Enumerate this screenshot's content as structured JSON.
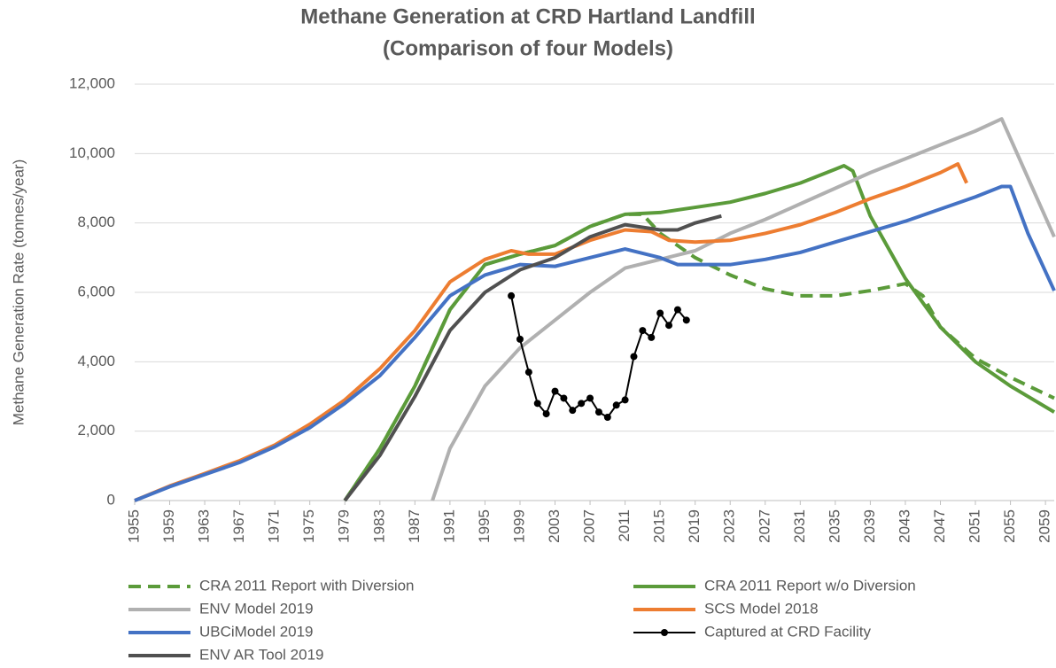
{
  "chart_data": {
    "type": "line",
    "title": "Methane Generation at CRD Hartland Landfill",
    "subtitle": "(Comparison of four Models)",
    "y_label": "Methane Generation Rate (tonnes/year)",
    "xlim": [
      1955,
      2060
    ],
    "xticks": [
      1955,
      1959,
      1963,
      1967,
      1971,
      1975,
      1979,
      1983,
      1987,
      1991,
      1995,
      1999,
      2003,
      2007,
      2011,
      2015,
      2019,
      2023,
      2027,
      2031,
      2035,
      2039,
      2043,
      2047,
      2051,
      2055,
      2059
    ],
    "ylim": [
      0,
      12000
    ],
    "yticks": [
      0,
      {
        "value": 2000,
        "label": "2,000"
      },
      {
        "value": 4000,
        "label": "4,000"
      },
      {
        "value": 6000,
        "label": "6,000"
      },
      {
        "value": 8000,
        "label": "8,000"
      },
      {
        "value": 10000,
        "label": "10,000"
      },
      {
        "value": 12000,
        "label": "12,000"
      }
    ],
    "grid": true,
    "legend": "bottom",
    "series": [
      {
        "name": "CRA 2011 Report with Diversion",
        "color": "#5b9b3a",
        "style": "dashed",
        "x": [
          1979,
          1983,
          1987,
          1991,
          1995,
          1999,
          2003,
          2007,
          2011,
          2013,
          2015,
          2019,
          2023,
          2027,
          2031,
          2035,
          2039,
          2043,
          2045,
          2047,
          2051,
          2055,
          2060
        ],
        "values": [
          0,
          1500,
          3300,
          5500,
          6800,
          7100,
          7350,
          7900,
          8250,
          8250,
          7700,
          7000,
          6500,
          6100,
          5900,
          5900,
          6050,
          6250,
          5900,
          5000,
          4100,
          3550,
          2950
        ]
      },
      {
        "name": "CRA 2011 Report w/o Diversion",
        "color": "#5b9b3a",
        "style": "solid",
        "x": [
          1979,
          1983,
          1987,
          1991,
          1995,
          1999,
          2003,
          2007,
          2011,
          2015,
          2019,
          2023,
          2027,
          2031,
          2035,
          2036,
          2037,
          2039,
          2043,
          2047,
          2051,
          2055,
          2060
        ],
        "values": [
          0,
          1500,
          3300,
          5500,
          6800,
          7100,
          7350,
          7900,
          8250,
          8300,
          8450,
          8600,
          8850,
          9150,
          9550,
          9650,
          9500,
          8200,
          6400,
          5000,
          4000,
          3300,
          2550
        ]
      },
      {
        "name": "ENV Model 2019",
        "color": "#b0b0b0",
        "style": "solid",
        "x": [
          1989,
          1991,
          1995,
          1999,
          2003,
          2007,
          2011,
          2015,
          2019,
          2023,
          2027,
          2031,
          2035,
          2039,
          2043,
          2047,
          2051,
          2054,
          2060
        ],
        "values": [
          0,
          1500,
          3300,
          4400,
          5200,
          6000,
          6700,
          6950,
          7200,
          7700,
          8100,
          8550,
          9000,
          9450,
          9850,
          10250,
          10650,
          11000,
          7600
        ]
      },
      {
        "name": "SCS Model 2018",
        "color": "#ed7d31",
        "style": "solid",
        "x": [
          1955,
          1959,
          1963,
          1967,
          1971,
          1975,
          1979,
          1983,
          1987,
          1991,
          1995,
          1998,
          2000,
          2003,
          2007,
          2011,
          2014,
          2016,
          2019,
          2023,
          2027,
          2031,
          2035,
          2039,
          2043,
          2047,
          2049,
          2050
        ],
        "values": [
          0,
          420,
          780,
          1150,
          1600,
          2200,
          2900,
          3800,
          4900,
          6300,
          6950,
          7200,
          7100,
          7100,
          7500,
          7800,
          7750,
          7500,
          7450,
          7500,
          7700,
          7950,
          8300,
          8700,
          9050,
          9450,
          9700,
          9150
        ]
      },
      {
        "name": "UBCiModel 2019",
        "color": "#4472c4",
        "style": "solid",
        "x": [
          1955,
          1959,
          1963,
          1967,
          1971,
          1975,
          1979,
          1983,
          1987,
          1991,
          1995,
          1999,
          2003,
          2007,
          2011,
          2015,
          2017,
          2023,
          2027,
          2031,
          2035,
          2039,
          2043,
          2047,
          2051,
          2054,
          2055,
          2057,
          2060
        ],
        "values": [
          0,
          400,
          750,
          1100,
          1550,
          2100,
          2800,
          3600,
          4700,
          5900,
          6500,
          6800,
          6750,
          7000,
          7250,
          7000,
          6800,
          6800,
          6950,
          7150,
          7450,
          7750,
          8050,
          8400,
          8750,
          9050,
          9050,
          7700,
          6050
        ]
      },
      {
        "name": "Captured at CRD Facility",
        "color": "#000000",
        "style": "solid",
        "marker": true,
        "x": [
          1998,
          1999,
          2000,
          2001,
          2002,
          2003,
          2004,
          2005,
          2006,
          2007,
          2008,
          2009,
          2010,
          2011,
          2012,
          2013,
          2014,
          2015,
          2016,
          2017,
          2018
        ],
        "values": [
          5900,
          4650,
          3700,
          2800,
          2500,
          3150,
          2950,
          2600,
          2800,
          2950,
          2550,
          2400,
          2750,
          2900,
          4150,
          4900,
          4700,
          5400,
          5050,
          5500,
          5200
        ]
      },
      {
        "name": "ENV AR Tool 2019",
        "color": "#505050",
        "style": "solid",
        "x": [
          1979,
          1983,
          1987,
          1991,
          1995,
          1999,
          2003,
          2007,
          2011,
          2015,
          2017,
          2019,
          2022
        ],
        "values": [
          0,
          1300,
          3000,
          4900,
          6000,
          6650,
          7000,
          7600,
          7950,
          7800,
          7800,
          8000,
          8200
        ]
      }
    ]
  }
}
